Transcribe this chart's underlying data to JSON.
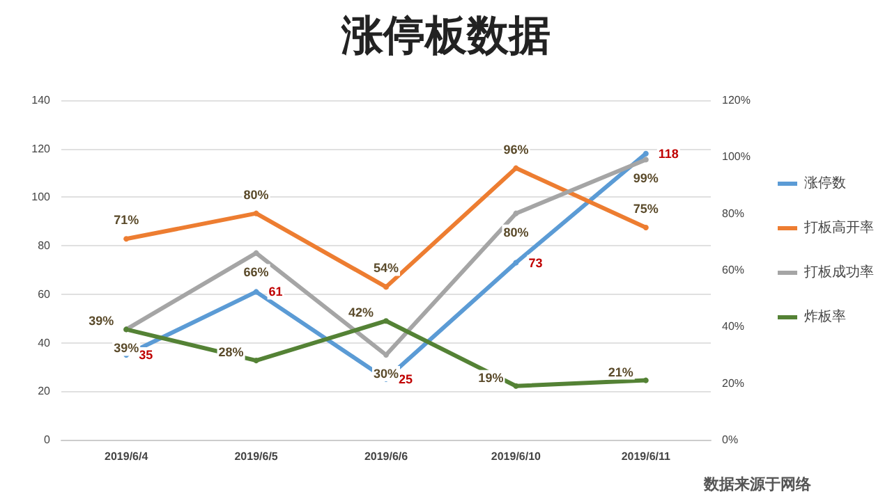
{
  "chart_data": {
    "type": "line",
    "title": "涨停板数据",
    "categories": [
      "2019/6/4",
      "2019/6/5",
      "2019/6/6",
      "2019/6/10",
      "2019/6/11"
    ],
    "series": [
      {
        "name": "涨停数",
        "color": "#5b9bd5",
        "values": [
          35,
          61,
          25,
          73,
          118
        ],
        "value_labels": [
          "35",
          "61",
          "25",
          "73",
          "118"
        ]
      },
      {
        "name": "打板高开率",
        "color": "#ed7d31",
        "axis": "y2",
        "values": [
          71,
          80,
          54,
          96,
          75
        ],
        "value_labels": [
          "71%",
          "80%",
          "54%",
          "96%",
          "75%"
        ]
      },
      {
        "name": "打板成功率",
        "color": "#a5a5a5",
        "axis": "y2",
        "values": [
          39,
          66,
          30,
          80,
          99
        ],
        "value_labels": [
          "39%",
          "66%",
          "30%",
          "80%",
          "99%"
        ]
      },
      {
        "name": "炸板率",
        "color": "#548235",
        "axis": "y2",
        "values": [
          39,
          28,
          42,
          19,
          21
        ],
        "value_labels": [
          "39%",
          "28%",
          "42%",
          "19%",
          "21%"
        ]
      }
    ],
    "ylim": [
      0,
      140
    ],
    "yticks": [
      0,
      20,
      40,
      60,
      80,
      100,
      120,
      140
    ],
    "y2lim": [
      0,
      120
    ],
    "y2ticks": [
      {
        "value": 0,
        "label": "0%"
      },
      {
        "value": 20,
        "label": "20%"
      },
      {
        "value": 40,
        "label": "40%"
      },
      {
        "value": 60,
        "label": "60%"
      },
      {
        "value": 80,
        "label": "80%"
      },
      {
        "value": 100,
        "label": "100%"
      },
      {
        "value": 120,
        "label": "120%"
      }
    ],
    "grid": "y",
    "legend": "right",
    "marker": "circle",
    "line_style": "solid",
    "annotations": [
      "数据来源于网络"
    ]
  }
}
